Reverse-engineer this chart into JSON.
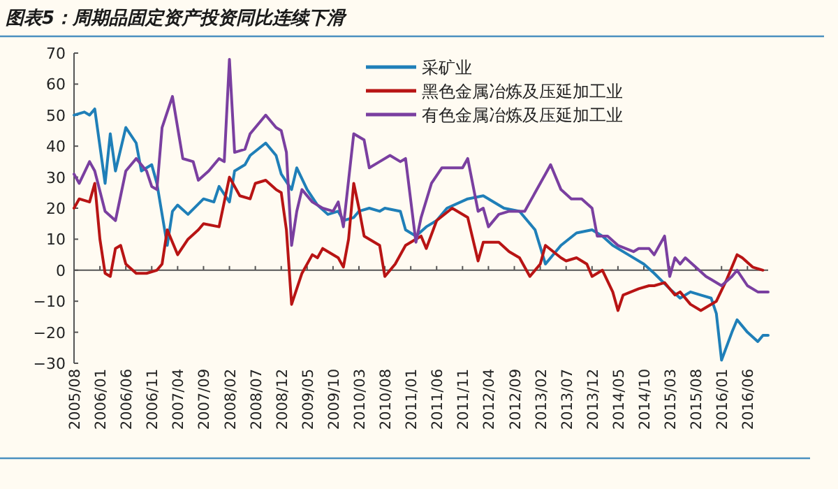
{
  "chart_data": {
    "type": "line",
    "title": "图表5：周期品固定资产投资同比连续下滑",
    "legend": "top",
    "marker": "none",
    "xlim": [
      "2005-08",
      "2016-10"
    ],
    "ylim": [
      -30,
      70
    ],
    "yticks": [
      -30,
      -20,
      -10,
      0,
      10,
      20,
      30,
      40,
      50,
      60,
      70
    ],
    "xticks": [
      {
        "value": "2005-08",
        "label": "2005/08"
      },
      {
        "value": "2006-01",
        "label": "2006/01"
      },
      {
        "value": "2006-06",
        "label": "2006/06"
      },
      {
        "value": "2006-11",
        "label": "2006/11"
      },
      {
        "value": "2007-04",
        "label": "2007/04"
      },
      {
        "value": "2007-09",
        "label": "2007/09"
      },
      {
        "value": "2008-02",
        "label": "2008/02"
      },
      {
        "value": "2008-07",
        "label": "2008/07"
      },
      {
        "value": "2008-12",
        "label": "2008/12"
      },
      {
        "value": "2009-05",
        "label": "2009/05"
      },
      {
        "value": "2009-10",
        "label": "2009/10"
      },
      {
        "value": "2010-03",
        "label": "2010/03"
      },
      {
        "value": "2010-08",
        "label": "2010/08"
      },
      {
        "value": "2011-01",
        "label": "2011/01"
      },
      {
        "value": "2011-06",
        "label": "2011/06"
      },
      {
        "value": "2011-11",
        "label": "2011/11"
      },
      {
        "value": "2012-04",
        "label": "2012/04"
      },
      {
        "value": "2012-09",
        "label": "2012/09"
      },
      {
        "value": "2013-02",
        "label": "2013/02"
      },
      {
        "value": "2013-07",
        "label": "2013/07"
      },
      {
        "value": "2013-12",
        "label": "2013/12"
      },
      {
        "value": "2014-05",
        "label": "2014/05"
      },
      {
        "value": "2014-10",
        "label": "2014/10"
      },
      {
        "value": "2015-03",
        "label": "2015/03"
      },
      {
        "value": "2015-08",
        "label": "2015/08"
      },
      {
        "value": "2016-01",
        "label": "2016/01"
      },
      {
        "value": "2016-06",
        "label": "2016/06"
      }
    ],
    "series": [
      {
        "name": "采矿业",
        "color": "#1f7fb8",
        "x": [
          "2005-08",
          "2005-10",
          "2005-11",
          "2005-12",
          "2006-02",
          "2006-03",
          "2006-04",
          "2006-06",
          "2006-08",
          "2006-09",
          "2006-11",
          "2006-12",
          "2007-02",
          "2007-03",
          "2007-04",
          "2007-06",
          "2007-09",
          "2007-11",
          "2007-12",
          "2008-02",
          "2008-03",
          "2008-05",
          "2008-06",
          "2008-09",
          "2008-11",
          "2008-12",
          "2009-02",
          "2009-03",
          "2009-05",
          "2009-07",
          "2009-09",
          "2009-11",
          "2009-12",
          "2010-02",
          "2010-03",
          "2010-05",
          "2010-07",
          "2010-08",
          "2010-11",
          "2010-12",
          "2011-02",
          "2011-04",
          "2011-06",
          "2011-08",
          "2011-12",
          "2012-03",
          "2012-07",
          "2012-10",
          "2013-01",
          "2013-03",
          "2013-06",
          "2013-09",
          "2013-12",
          "2014-02",
          "2014-04",
          "2014-07",
          "2014-10",
          "2014-12",
          "2015-03",
          "2015-05",
          "2015-07",
          "2015-09",
          "2015-11",
          "2015-12",
          "2016-01",
          "2016-03",
          "2016-04",
          "2016-06",
          "2016-08",
          "2016-09",
          "2016-10"
        ],
        "values": [
          50,
          51,
          50,
          52,
          28,
          44,
          32,
          46,
          41,
          32,
          34,
          28,
          8,
          19,
          21,
          18,
          23,
          22,
          27,
          22,
          32,
          34,
          37,
          41,
          37,
          31,
          26,
          33,
          26,
          21,
          18,
          19,
          16,
          17,
          19,
          20,
          19,
          20,
          19,
          13,
          11,
          14,
          16,
          20,
          23,
          24,
          20,
          19,
          13,
          2,
          8,
          12,
          13,
          11,
          8,
          5,
          2,
          -1,
          -6,
          -9,
          -7,
          -8,
          -9,
          -14,
          -29,
          -20,
          -16,
          -20,
          -23,
          -21,
          -21
        ]
      },
      {
        "name": "黑色金属冶炼及压延加工业",
        "color": "#b81414",
        "x": [
          "2005-08",
          "2005-09",
          "2005-11",
          "2005-12",
          "2006-01",
          "2006-02",
          "2006-03",
          "2006-04",
          "2006-05",
          "2006-06",
          "2006-08",
          "2006-10",
          "2006-12",
          "2007-01",
          "2007-02",
          "2007-04",
          "2007-06",
          "2007-08",
          "2007-09",
          "2007-12",
          "2008-02",
          "2008-04",
          "2008-06",
          "2008-07",
          "2008-09",
          "2008-11",
          "2008-12",
          "2009-01",
          "2009-02",
          "2009-04",
          "2009-06",
          "2009-07",
          "2009-08",
          "2009-11",
          "2009-12",
          "2010-01",
          "2010-02",
          "2010-03",
          "2010-04",
          "2010-07",
          "2010-08",
          "2010-10",
          "2010-12",
          "2011-03",
          "2011-04",
          "2011-06",
          "2011-09",
          "2011-12",
          "2012-02",
          "2012-03",
          "2012-06",
          "2012-08",
          "2012-10",
          "2012-12",
          "2013-02",
          "2013-03",
          "2013-06",
          "2013-07",
          "2013-09",
          "2013-11",
          "2013-12",
          "2014-02",
          "2014-04",
          "2014-05",
          "2014-06",
          "2014-09",
          "2014-11",
          "2014-12",
          "2015-02",
          "2015-04",
          "2015-05",
          "2015-07",
          "2015-09",
          "2015-12",
          "2016-02",
          "2016-04",
          "2016-05",
          "2016-07",
          "2016-09"
        ],
        "values": [
          20,
          23,
          22,
          28,
          10,
          -1,
          -2,
          7,
          8,
          2,
          -1,
          -1,
          0,
          2,
          13,
          5,
          10,
          13,
          15,
          14,
          30,
          24,
          23,
          28,
          29,
          26,
          25,
          13,
          -11,
          -1,
          5,
          4,
          7,
          4,
          1,
          10,
          28,
          20,
          11,
          8,
          -2,
          2,
          8,
          11,
          7,
          16,
          20,
          17,
          3,
          9,
          9,
          6,
          4,
          -2,
          2,
          8,
          4,
          3,
          4,
          2,
          -2,
          0,
          -7,
          -13,
          -8,
          -6,
          -5,
          -5,
          -4,
          -8,
          -7,
          -11,
          -13,
          -10,
          -3,
          5,
          4,
          1,
          0
        ]
      },
      {
        "name": "有色金属冶炼及压延加工业",
        "color": "#7a3fa0",
        "x": [
          "2005-08",
          "2005-09",
          "2005-11",
          "2005-12",
          "2006-02",
          "2006-04",
          "2006-05",
          "2006-06",
          "2006-08",
          "2006-10",
          "2006-11",
          "2006-12",
          "2007-01",
          "2007-03",
          "2007-05",
          "2007-07",
          "2007-08",
          "2007-10",
          "2007-12",
          "2008-01",
          "2008-02",
          "2008-03",
          "2008-05",
          "2008-06",
          "2008-09",
          "2008-11",
          "2008-12",
          "2009-01",
          "2009-02",
          "2009-03",
          "2009-04",
          "2009-06",
          "2009-08",
          "2009-10",
          "2009-11",
          "2009-12",
          "2010-02",
          "2010-04",
          "2010-05",
          "2010-07",
          "2010-09",
          "2010-11",
          "2010-12",
          "2011-02",
          "2011-03",
          "2011-05",
          "2011-07",
          "2011-11",
          "2011-12",
          "2012-02",
          "2012-03",
          "2012-04",
          "2012-06",
          "2012-08",
          "2012-11",
          "2013-01",
          "2013-03",
          "2013-04",
          "2013-06",
          "2013-08",
          "2013-10",
          "2013-12",
          "2014-01",
          "2014-03",
          "2014-05",
          "2014-08",
          "2014-09",
          "2014-11",
          "2014-12",
          "2015-02",
          "2015-03",
          "2015-04",
          "2015-05",
          "2015-06",
          "2015-08",
          "2015-10",
          "2016-01",
          "2016-03",
          "2016-04",
          "2016-06",
          "2016-08",
          "2016-10"
        ],
        "values": [
          31,
          28,
          35,
          32,
          19,
          16,
          24,
          32,
          36,
          32,
          27,
          26,
          46,
          56,
          36,
          35,
          29,
          32,
          36,
          35,
          68,
          38,
          39,
          44,
          50,
          46,
          45,
          38,
          8,
          19,
          26,
          22,
          20,
          19,
          22,
          14,
          44,
          42,
          33,
          35,
          37,
          35,
          36,
          9,
          17,
          28,
          33,
          33,
          36,
          19,
          20,
          14,
          18,
          19,
          19,
          25,
          31,
          34,
          26,
          23,
          23,
          20,
          11,
          11,
          8,
          6,
          7,
          7,
          5,
          11,
          -2,
          4,
          2,
          4,
          1,
          -2,
          -5,
          -2,
          0,
          -5,
          -7,
          -7
        ]
      }
    ]
  }
}
